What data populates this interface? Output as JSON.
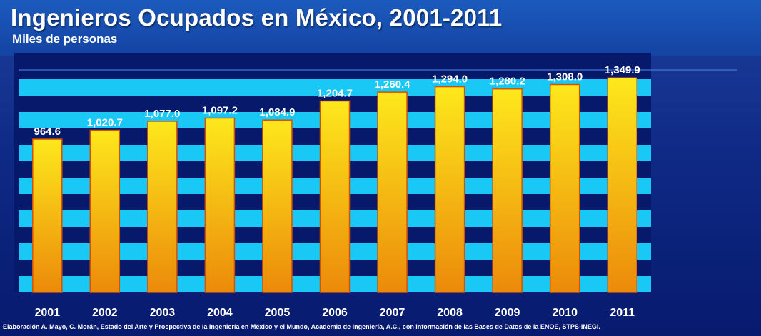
{
  "header": {
    "title": "Ingenieros Ocupados en México, 2001-2011",
    "subtitle": "Miles de personas"
  },
  "footer": {
    "source": "Elaboración A. Mayo, C. Morán, Estado del Arte y Prospectiva de la Ingeniería en México y el Mundo, Academia de Ingeniería, A.C., con información de las Bases de Datos de la ENOE, STPS-INEGI."
  },
  "colors": {
    "background": "#0f2a86",
    "stripe": "#19c8f5",
    "bar_top": "#fde81c",
    "bar_bottom": "#ec8a0a",
    "bar_border": "#d2520a"
  },
  "chart_data": {
    "type": "bar",
    "title": "Ingenieros Ocupados en México, 2001-2011",
    "subtitle": "Miles de personas",
    "xlabel": "",
    "ylabel": "",
    "categories": [
      "2001",
      "2002",
      "2003",
      "2004",
      "2005",
      "2006",
      "2007",
      "2008",
      "2009",
      "2010",
      "2011"
    ],
    "values": [
      964.6,
      1020.7,
      1077.0,
      1097.2,
      1084.9,
      1204.7,
      1260.4,
      1294.0,
      1280.2,
      1308.0,
      1349.9
    ],
    "data_labels": [
      "964.6",
      "1,020.7",
      "1,077.0",
      "1,097.2",
      "1,084.9",
      "1,204.7",
      "1,260.4",
      "1,294.0",
      "1,280.2",
      "1,308.0",
      "1,349.9"
    ],
    "ylim": [
      0,
      1400
    ],
    "grid": "horizontal bands",
    "legend": "none"
  }
}
